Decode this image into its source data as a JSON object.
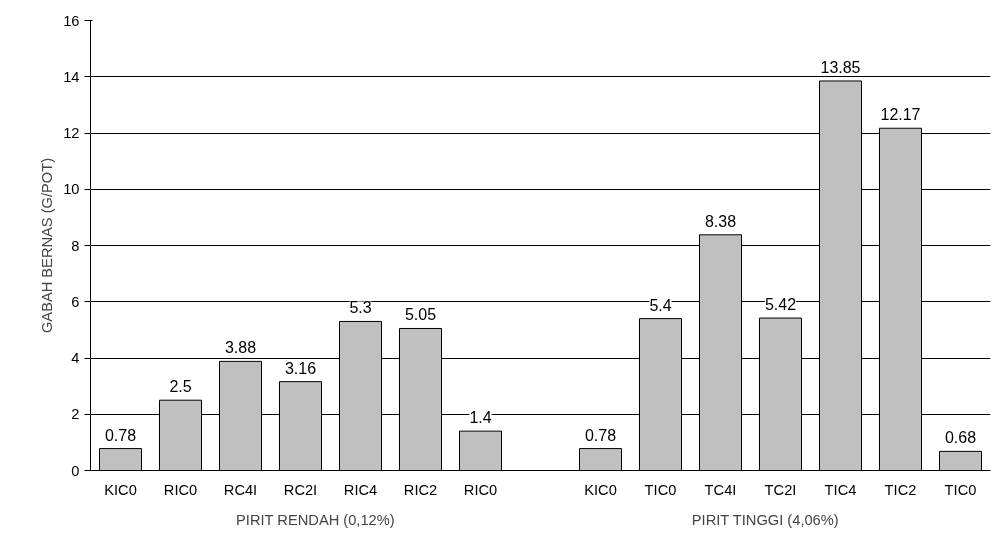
{
  "chart_data": {
    "type": "bar",
    "ylabel": "GABAH BERNAS (G/POT)",
    "categories": [
      "KIC0",
      "RIC0",
      "RC4I",
      "RC2I",
      "RIC4",
      "RIC2",
      "RIC0",
      null,
      "KIC0",
      "TIC0",
      "TC4I",
      "TC2I",
      "TIC4",
      "TIC2",
      "TIC0"
    ],
    "values": [
      0.78,
      2.5,
      3.88,
      3.16,
      5.3,
      5.05,
      1.4,
      null,
      0.78,
      5.4,
      8.38,
      5.42,
      13.85,
      12.17,
      0.68
    ],
    "color": "#c0c0c0",
    "ylim": [
      0,
      16
    ],
    "yticks": [
      0,
      2,
      4,
      6,
      8,
      10,
      12,
      14,
      16
    ],
    "grid": "y",
    "data_labels": true,
    "annotations": [
      "PIRIT RENDAH (0,12%)",
      "PIRIT TINGGI (4,06%)"
    ]
  }
}
